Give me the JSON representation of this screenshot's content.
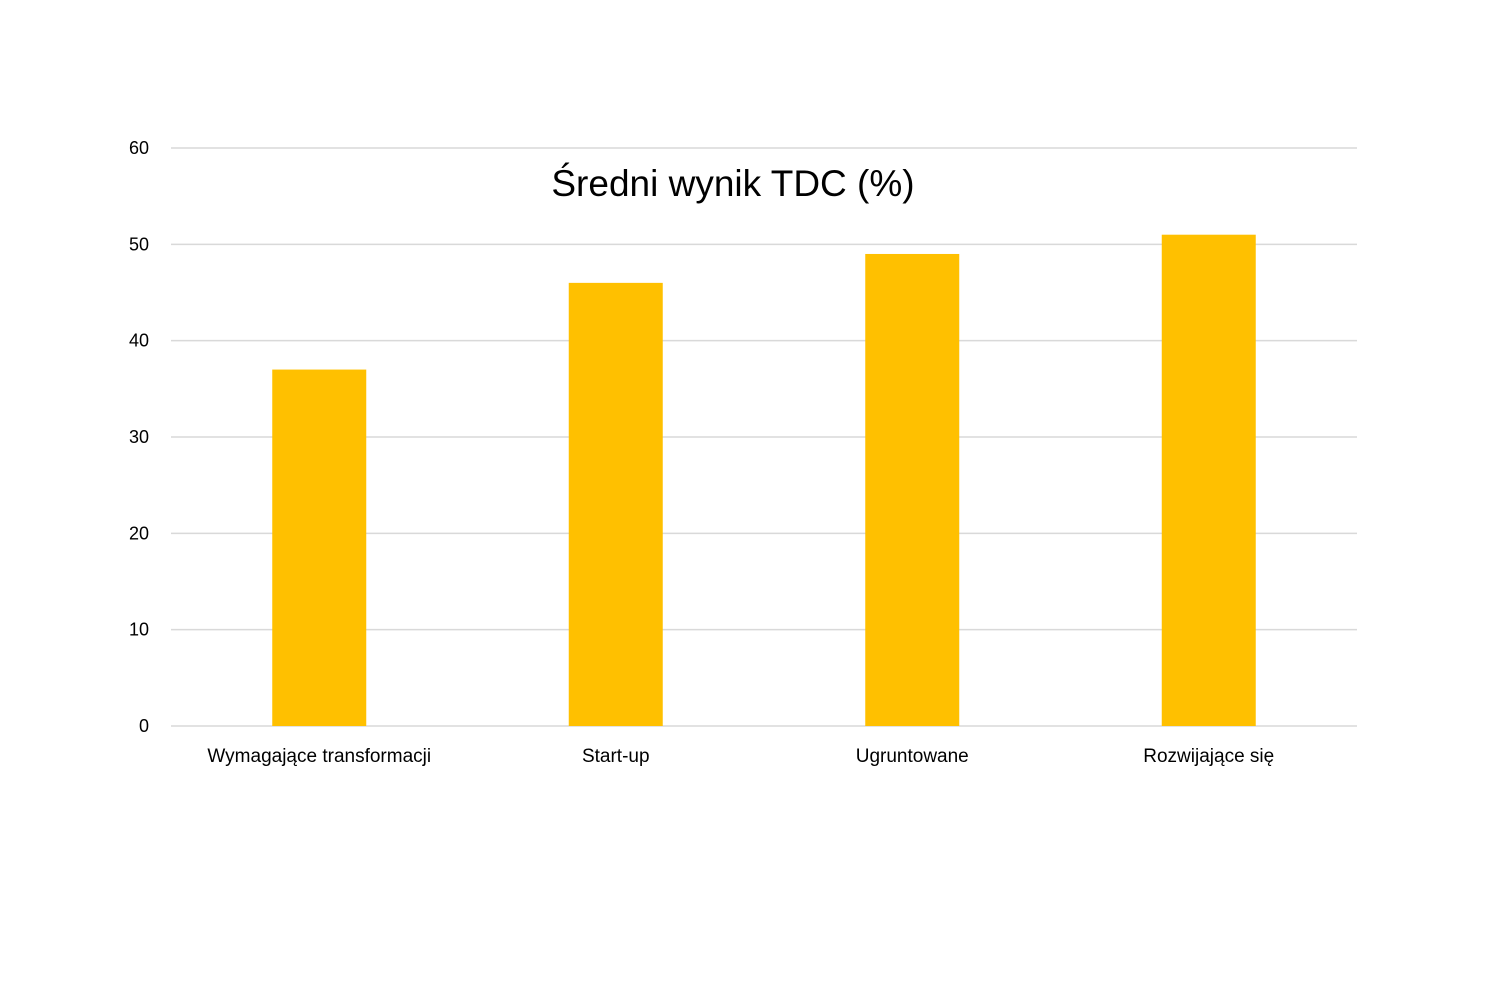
{
  "chart_data": {
    "type": "bar",
    "title": "Średni wynik TDC (%)",
    "xlabel": "",
    "ylabel": "",
    "categories": [
      "Wymagające transformacji",
      "Start-up",
      "Ugruntowane",
      "Rozwijające się"
    ],
    "values": [
      37,
      46,
      49,
      51
    ],
    "ylim": [
      0,
      60
    ],
    "yticks": [
      0,
      10,
      20,
      30,
      40,
      50,
      60
    ],
    "grid": true,
    "legend": "none",
    "colors": {
      "bar": "#FFC000",
      "grid": "#D9D9D9",
      "text": "#000000"
    }
  }
}
